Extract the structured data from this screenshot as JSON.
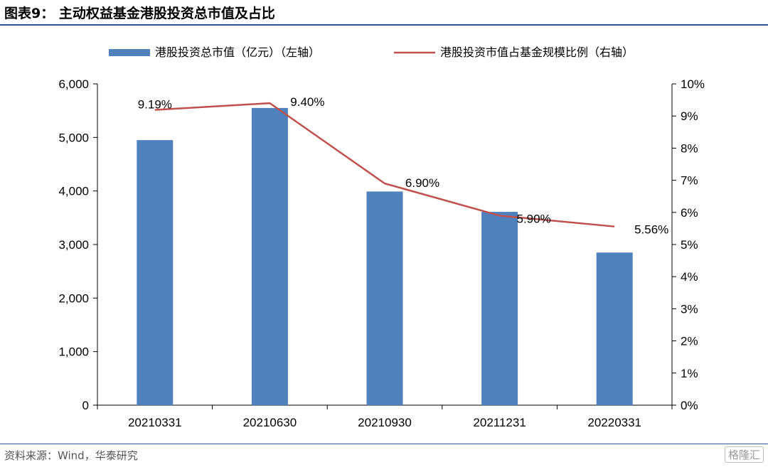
{
  "figure": {
    "title": "图表9：  主动权益基金港股投资总市值及占比",
    "source": "资料来源：Wind，华泰研究",
    "watermark": "格隆汇"
  },
  "chart_data": {
    "type": "bar",
    "categories": [
      "20210331",
      "20210630",
      "20210930",
      "20211231",
      "20220331"
    ],
    "series": [
      {
        "name": "港股投资总市值（亿元）（左轴）",
        "type": "bar",
        "axis": "left",
        "color": "#4f81bd",
        "values": [
          4950,
          5550,
          3990,
          3610,
          2850
        ]
      },
      {
        "name": "港股投资市值占基金规模比例（右轴）",
        "type": "line",
        "axis": "right",
        "color": "#c0504d",
        "values": [
          9.19,
          9.4,
          6.9,
          5.9,
          5.56
        ],
        "data_labels": [
          "9.19%",
          "9.40%",
          "6.90%",
          "5.90%",
          "5.56%"
        ]
      }
    ],
    "y_left": {
      "ylim": [
        0,
        6000
      ],
      "ticks": [
        0,
        1000,
        2000,
        3000,
        4000,
        5000,
        6000
      ],
      "tick_labels": [
        "0",
        "1,000",
        "2,000",
        "3,000",
        "4,000",
        "5,000",
        "6,000"
      ]
    },
    "y_right": {
      "ylim": [
        0,
        10
      ],
      "ticks": [
        0,
        1,
        2,
        3,
        4,
        5,
        6,
        7,
        8,
        9,
        10
      ],
      "tick_labels": [
        "0%",
        "1%",
        "2%",
        "3%",
        "4%",
        "5%",
        "6%",
        "7%",
        "8%",
        "9%",
        "10%"
      ]
    },
    "legend_position": "top",
    "grid": false
  }
}
